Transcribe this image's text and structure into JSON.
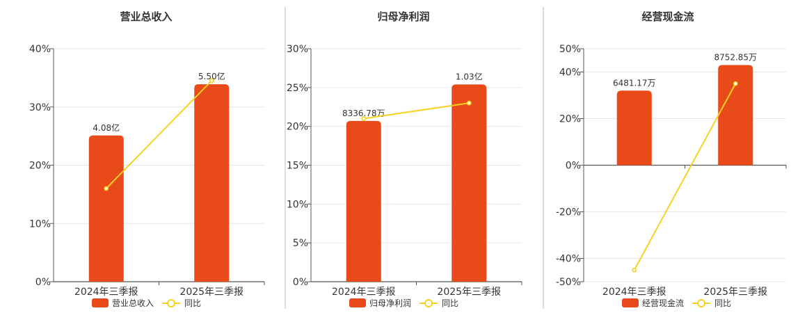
{
  "colors": {
    "bar": "#e84a19",
    "line": "#f5d320",
    "grid": "#e6e6e6",
    "axis": "#555555",
    "divider": "#bbbbbb"
  },
  "chart_data": [
    {
      "type": "bar",
      "title": "营业总收入",
      "categories": [
        "2024年三季报",
        "2025年三季报"
      ],
      "series": [
        {
          "name": "营业总收入",
          "type": "bar",
          "values": [
            25.1,
            33.9
          ],
          "labels": [
            "4.08亿",
            "5.50亿"
          ]
        },
        {
          "name": "同比",
          "type": "line",
          "values": [
            16,
            34.5
          ]
        }
      ],
      "ylim": [
        0,
        40
      ],
      "yticks": [
        "0%",
        "10%",
        "20%",
        "30%",
        "40%"
      ],
      "ytick_values": [
        0,
        10,
        20,
        30,
        40
      ],
      "grid": true,
      "legend": "bottom"
    },
    {
      "type": "bar",
      "title": "归母净利润",
      "categories": [
        "2024年三季报",
        "2025年三季报"
      ],
      "series": [
        {
          "name": "归母净利润",
          "type": "bar",
          "values": [
            20.7,
            25.4
          ],
          "labels": [
            "8336.78万",
            "1.03亿"
          ]
        },
        {
          "name": "同比",
          "type": "line",
          "values": [
            21,
            23
          ]
        }
      ],
      "ylim": [
        0,
        30
      ],
      "yticks": [
        "0%",
        "5%",
        "10%",
        "15%",
        "20%",
        "25%",
        "30%"
      ],
      "ytick_values": [
        0,
        5,
        10,
        15,
        20,
        25,
        30
      ],
      "grid": true,
      "legend": "bottom"
    },
    {
      "type": "bar",
      "title": "经营现金流",
      "categories": [
        "2024年三季报",
        "2025年三季报"
      ],
      "series": [
        {
          "name": "经营现金流",
          "type": "bar",
          "values": [
            32,
            43
          ],
          "labels": [
            "6481.17万",
            "8752.85万"
          ]
        },
        {
          "name": "同比",
          "type": "line",
          "values": [
            -45,
            35
          ]
        }
      ],
      "ylim": [
        -50,
        50
      ],
      "yticks": [
        "-50%",
        "-40%",
        "-20%",
        "0%",
        "20%",
        "40%",
        "50%"
      ],
      "ytick_values": [
        -50,
        -40,
        -20,
        0,
        20,
        40,
        50
      ],
      "grid": true,
      "legend": "bottom"
    }
  ]
}
